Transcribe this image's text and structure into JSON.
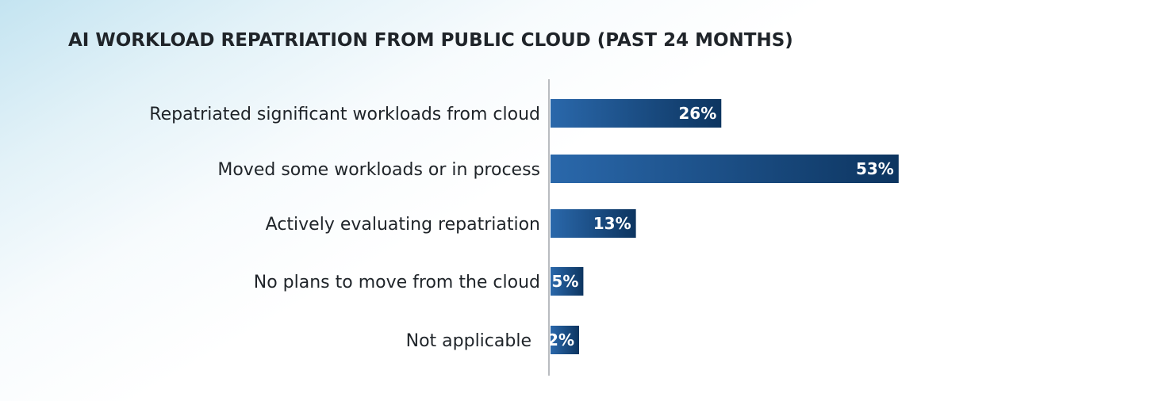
{
  "chart_data": {
    "type": "bar",
    "orientation": "horizontal",
    "title": "AI WORKLOAD REPATRIATION FROM PUBLIC CLOUD (PAST 24 MONTHS)",
    "categories": [
      "Repatriated significant workloads from cloud",
      "Moved some workloads or in process",
      "Actively evaluating repatriation",
      "No plans to move from the cloud",
      "Not applicable"
    ],
    "values": [
      26,
      53,
      13,
      5,
      2
    ],
    "value_labels": [
      "26%",
      "53%",
      "13%",
      "5%",
      "2%"
    ],
    "unit": "%",
    "xlim": [
      0,
      100
    ],
    "grid": false,
    "legend": "none",
    "colors": {
      "bar_start": "#2a68ab",
      "bar_end": "#0d3560",
      "axis_line": "#b9bcc0",
      "label_text": "#1f2429",
      "value_text": "#ffffff"
    }
  }
}
